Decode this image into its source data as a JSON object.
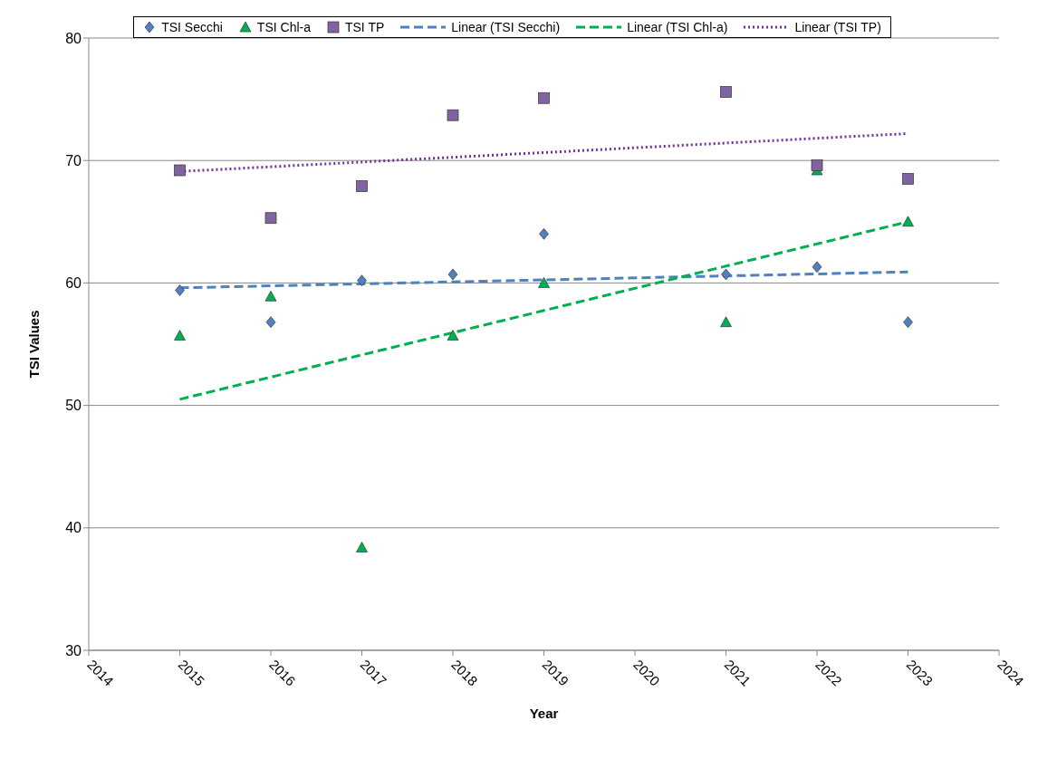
{
  "chart_data": {
    "type": "scatter",
    "xlabel": "Year",
    "ylabel": "TSI Values",
    "xlim": [
      2014,
      2024
    ],
    "xticks": [
      2014,
      2015,
      2016,
      2017,
      2018,
      2019,
      2020,
      2021,
      2022,
      2023,
      2024
    ],
    "ylim": [
      30,
      80
    ],
    "yticks": [
      30,
      40,
      50,
      60,
      70,
      80
    ],
    "grid": "y",
    "legend": "top",
    "series": [
      {
        "name": "TSI Secchi",
        "marker": "diamond",
        "color": "#4f81bd",
        "x": [
          2015,
          2016,
          2017,
          2018,
          2019,
          2021,
          2022,
          2023
        ],
        "values": [
          59.4,
          56.8,
          60.2,
          60.7,
          64.0,
          60.7,
          61.3,
          56.8
        ]
      },
      {
        "name": "TSI Chl-a",
        "marker": "triangle",
        "color": "#00b050",
        "x": [
          2015,
          2016,
          2017,
          2018,
          2019,
          2021,
          2022,
          2023
        ],
        "values": [
          55.7,
          58.9,
          38.4,
          55.7,
          60.0,
          56.8,
          69.2,
          65.0
        ]
      },
      {
        "name": "TSI TP",
        "marker": "square",
        "color": "#8064a2",
        "x": [
          2015,
          2016,
          2017,
          2018,
          2019,
          2021,
          2022,
          2023
        ],
        "values": [
          69.2,
          65.3,
          67.9,
          73.7,
          75.1,
          75.6,
          69.6,
          68.5
        ]
      },
      {
        "name": "Linear (TSI Secchi)",
        "type": "line",
        "marker": "none",
        "line_style": "dashed",
        "color": "#4f81bd",
        "x": [
          2015,
          2023
        ],
        "values": [
          59.6,
          60.9
        ]
      },
      {
        "name": "Linear (TSI Chl-a)",
        "type": "line",
        "marker": "none",
        "line_style": "dashed",
        "color": "#00b050",
        "x": [
          2015,
          2023
        ],
        "values": [
          50.5,
          65.0
        ]
      },
      {
        "name": "Linear (TSI TP)",
        "type": "line",
        "marker": "none",
        "line_style": "dotted",
        "color": "#7030a0",
        "x": [
          2015,
          2023
        ],
        "values": [
          69.1,
          72.2
        ]
      }
    ]
  }
}
